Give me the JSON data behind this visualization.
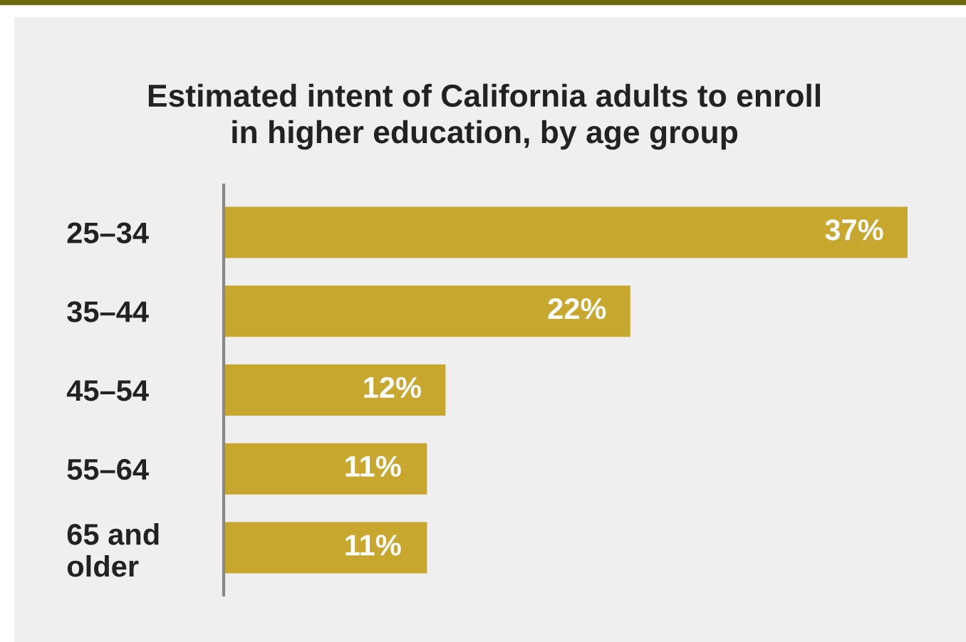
{
  "chart_data": {
    "type": "bar",
    "orientation": "horizontal",
    "title": "Estimated intent of California adults to enroll\nin higher education, by age group",
    "categories": [
      "25–34",
      "35–44",
      "45–54",
      "55–64",
      "65 and\nolder"
    ],
    "values": [
      37,
      22,
      12,
      11,
      11
    ],
    "value_labels": [
      "37%",
      "22%",
      "12%",
      "11%",
      "11%"
    ],
    "color": "#c8a72f",
    "xlim": [
      0,
      37
    ],
    "grid": false,
    "legend": false
  }
}
